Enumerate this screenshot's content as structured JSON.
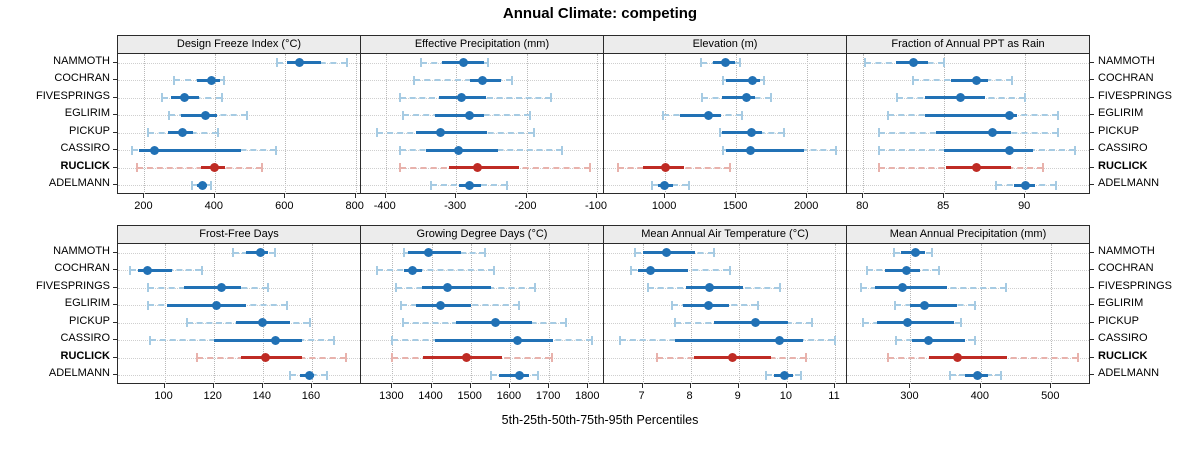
{
  "title": "Annual Climate: competing",
  "caption": "5th-25th-50th-75th-95th Percentiles",
  "chart_data": {
    "type": "dotplot-intervals",
    "title": "Annual Climate: competing",
    "xlabel": "5th-25th-50th-75th-95th Percentiles",
    "percentiles": [
      5,
      25,
      50,
      75,
      95
    ],
    "stations": [
      "NAMMOTH",
      "COCHRAN",
      "FIVESPRINGS",
      "EGLIRIM",
      "PICKUP",
      "CASSIRO",
      "RUCLICK",
      "ADELMANN"
    ],
    "highlight_station": "RUCLICK",
    "legend_position": "none",
    "grid": true,
    "colors": {
      "normal": "#2171b5",
      "normal_light": "#a6cbe3",
      "highlight": "#bf2b24",
      "highlight_light": "#e8b2ac",
      "strip_bg": "#ececec",
      "panel_border": "#2b2b2b",
      "grid_line": "#bdbdbd"
    },
    "rows": [
      {
        "panels": [
          {
            "title": "Design Freeze Index (°C)",
            "xlim": [
              125,
              815
            ],
            "ticks": [
              200,
              400,
              600,
              800
            ],
            "tick_labels": [
              "200",
              "400",
              "600",
              "800"
            ],
            "values": {
              "NAMMOTH": [
                575,
                605,
                640,
                700,
                775
              ],
              "COCHRAN": [
                285,
                350,
                390,
                415,
                425
              ],
              "FIVESPRINGS": [
                250,
                275,
                315,
                355,
                420
              ],
              "EGLIRIM": [
                270,
                305,
                372,
                407,
                490
              ],
              "PICKUP": [
                210,
                268,
                307,
                337,
                410
              ],
              "CASSIRO": [
                165,
                185,
                228,
                475,
                573
              ],
              "RUCLICK": [
                180,
                360,
                398,
                430,
                535
              ],
              "ADELMANN": [
                335,
                350,
                365,
                377,
                390
              ]
            }
          },
          {
            "title": "Effective Precipitation (mm)",
            "xlim": [
              -435,
              -90
            ],
            "ticks": [
              -400,
              -300,
              -200,
              -100
            ],
            "tick_labels": [
              "-400",
              "-300",
              "-200",
              "-100"
            ],
            "values": {
              "NAMMOTH": [
                -350,
                -320,
                -290,
                -260,
                -255
              ],
              "COCHRAN": [
                -360,
                -280,
                -263,
                -236,
                -220
              ],
              "FIVESPRINGS": [
                -380,
                -325,
                -293,
                -258,
                -165
              ],
              "EGLIRIM": [
                -375,
                -330,
                -281,
                -260,
                -195
              ],
              "PICKUP": [
                -412,
                -357,
                -322,
                -256,
                -190
              ],
              "CASSIRO": [
                -380,
                -343,
                -297,
                -240,
                -150
              ],
              "RUCLICK": [
                -379,
                -310,
                -270,
                -210,
                -110
              ],
              "ADELMANN": [
                -335,
                -296,
                -281,
                -265,
                -228
              ]
            }
          },
          {
            "title": "Elevation (m)",
            "xlim": [
              570,
              2280
            ],
            "ticks": [
              1000,
              1500,
              2000
            ],
            "tick_labels": [
              "1000",
              "1500",
              "2000"
            ],
            "values": {
              "NAMMOTH": [
                1255,
                1340,
                1425,
                1495,
                1525
              ],
              "COCHRAN": [
                1410,
                1430,
                1615,
                1670,
                1695
              ],
              "FIVESPRINGS": [
                1260,
                1400,
                1570,
                1635,
                1745
              ],
              "EGLIRIM": [
                985,
                1105,
                1305,
                1390,
                1540
              ],
              "PICKUP": [
                1385,
                1400,
                1610,
                1685,
                1835
              ],
              "CASSIRO": [
                1410,
                1425,
                1600,
                1980,
                2200
              ],
              "RUCLICK": [
                670,
                845,
                1000,
                1130,
                1455
              ],
              "ADELMANN": [
                905,
                950,
                995,
                1055,
                1165
              ]
            }
          },
          {
            "title": "Fraction of Annual PPT as Rain",
            "xlim": [
              79,
              94
            ],
            "ticks": [
              80,
              85,
              90
            ],
            "tick_labels": [
              "80",
              "85",
              "90"
            ],
            "values": {
              "NAMMOTH": [
                80.1,
                82.0,
                83.1,
                84.0,
                85.0
              ],
              "COCHRAN": [
                83.1,
                85.4,
                87.0,
                87.7,
                89.2
              ],
              "FIVESPRINGS": [
                82.1,
                83.8,
                86.0,
                87.5,
                90.0
              ],
              "EGLIRIM": [
                81.5,
                83.8,
                89.0,
                89.5,
                92.0
              ],
              "PICKUP": [
                81.0,
                84.5,
                88.0,
                89.1,
                92.0
              ],
              "CASSIRO": [
                81.0,
                85.0,
                89.0,
                90.5,
                93.1
              ],
              "RUCLICK": [
                81.0,
                85.1,
                87.0,
                89.1,
                91.1
              ],
              "ADELMANN": [
                88.2,
                89.3,
                90.0,
                90.6,
                91.9
              ]
            }
          }
        ]
      },
      {
        "panels": [
          {
            "title": "Frost-Free Days",
            "xlim": [
              81,
              180
            ],
            "ticks": [
              100,
              120,
              140,
              160
            ],
            "tick_labels": [
              "100",
              "120",
              "140",
              "160"
            ],
            "values": {
              "NAMMOTH": [
                128,
                133,
                139,
                142,
                145
              ],
              "COCHRAN": [
                86,
                89,
                93,
                103,
                115
              ],
              "FIVESPRINGS": [
                93,
                108,
                123,
                131,
                142
              ],
              "EGLIRIM": [
                93,
                101,
                121,
                133,
                150
              ],
              "PICKUP": [
                109,
                129,
                140,
                151,
                159
              ],
              "CASSIRO": [
                94,
                120,
                145,
                156,
                169
              ],
              "RUCLICK": [
                113,
                131,
                141,
                156,
                174
              ],
              "ADELMANN": [
                151,
                155,
                159,
                161,
                166
              ]
            }
          },
          {
            "title": "Growing Degree Days (°C)",
            "xlim": [
              1220,
              1840
            ],
            "ticks": [
              1300,
              1400,
              1500,
              1600,
              1700,
              1800
            ],
            "tick_labels": [
              "1300",
              "1400",
              "1500",
              "1600",
              "1700",
              "1800"
            ],
            "values": {
              "NAMMOTH": [
                1330,
                1341,
                1393,
                1475,
                1537
              ],
              "COCHRAN": [
                1260,
                1330,
                1351,
                1377,
                1560
              ],
              "FIVESPRINGS": [
                1310,
                1376,
                1440,
                1551,
                1664
              ],
              "EGLIRIM": [
                1321,
                1360,
                1422,
                1500,
                1623
              ],
              "PICKUP": [
                1326,
                1462,
                1564,
                1657,
                1744
              ],
              "CASSIRO": [
                1298,
                1408,
                1619,
                1710,
                1809
              ],
              "RUCLICK": [
                1298,
                1379,
                1490,
                1581,
                1706
              ],
              "ADELMANN": [
                1551,
                1572,
                1625,
                1649,
                1672
              ]
            }
          },
          {
            "title": "Mean Annual Air Temperature (°C)",
            "xlim": [
              6.2,
              11.25
            ],
            "ticks": [
              7,
              8,
              9,
              10,
              11
            ],
            "tick_labels": [
              "7",
              "8",
              "9",
              "10",
              "11"
            ],
            "values": {
              "NAMMOTH": [
                6.85,
                7.0,
                7.5,
                8.1,
                8.48
              ],
              "COCHRAN": [
                6.76,
                6.9,
                7.17,
                7.95,
                8.81
              ],
              "FIVESPRINGS": [
                7.12,
                7.9,
                8.4,
                9.1,
                9.85
              ],
              "EGLIRIM": [
                7.62,
                7.85,
                8.37,
                8.8,
                9.39
              ],
              "PICKUP": [
                7.67,
                8.48,
                9.35,
                10.03,
                10.52
              ],
              "CASSIRO": [
                6.54,
                7.67,
                9.84,
                10.34,
                10.99
              ],
              "RUCLICK": [
                7.3,
                8.07,
                8.86,
                9.66,
                10.39
              ],
              "ADELMANN": [
                9.57,
                9.74,
                9.95,
                10.12,
                10.3
              ]
            }
          },
          {
            "title": "Mean Annual Precipitation (mm)",
            "xlim": [
              210,
              555
            ],
            "ticks": [
              300,
              400,
              500
            ],
            "tick_labels": [
              "300",
              "400",
              "500"
            ],
            "values": {
              "NAMMOTH": [
                277,
                286,
                307,
                321,
                331
              ],
              "COCHRAN": [
                238,
                264,
                294,
                314,
                340
              ],
              "FIVESPRINGS": [
                230,
                249,
                289,
                352,
                436
              ],
              "EGLIRIM": [
                278,
                300,
                320,
                366,
                391
              ],
              "PICKUP": [
                233,
                253,
                296,
                362,
                372
              ],
              "CASSIRO": [
                280,
                302,
                326,
                378,
                391
              ],
              "RUCLICK": [
                268,
                326,
                367,
                437,
                538
              ],
              "ADELMANN": [
                356,
                378,
                395,
                411,
                429
              ]
            }
          }
        ]
      }
    ]
  }
}
